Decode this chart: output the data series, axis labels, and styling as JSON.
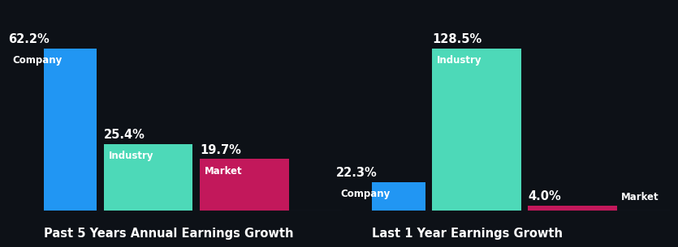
{
  "background_color": "#0d1117",
  "left_group": {
    "title": "Past 5 Years Annual Earnings Growth",
    "bars": [
      {
        "label": "Company",
        "value": 62.2,
        "color": "#2196f3"
      },
      {
        "label": "Industry",
        "value": 25.4,
        "color": "#4dd9b8"
      },
      {
        "label": "Market",
        "value": 19.7,
        "color": "#c2185b"
      }
    ]
  },
  "right_group": {
    "title": "Last 1 Year Earnings Growth",
    "bars": [
      {
        "label": "Company",
        "value": 22.3,
        "color": "#2196f3"
      },
      {
        "label": "Industry",
        "value": 128.5,
        "color": "#4dd9b8"
      },
      {
        "label": "Market",
        "value": 4.0,
        "color": "#c2185b"
      }
    ]
  },
  "text_color": "#ffffff",
  "label_fontsize": 8.5,
  "value_fontsize": 10.5,
  "title_fontsize": 10.5,
  "bar_width": 1.0,
  "bar_gap": 0.08
}
